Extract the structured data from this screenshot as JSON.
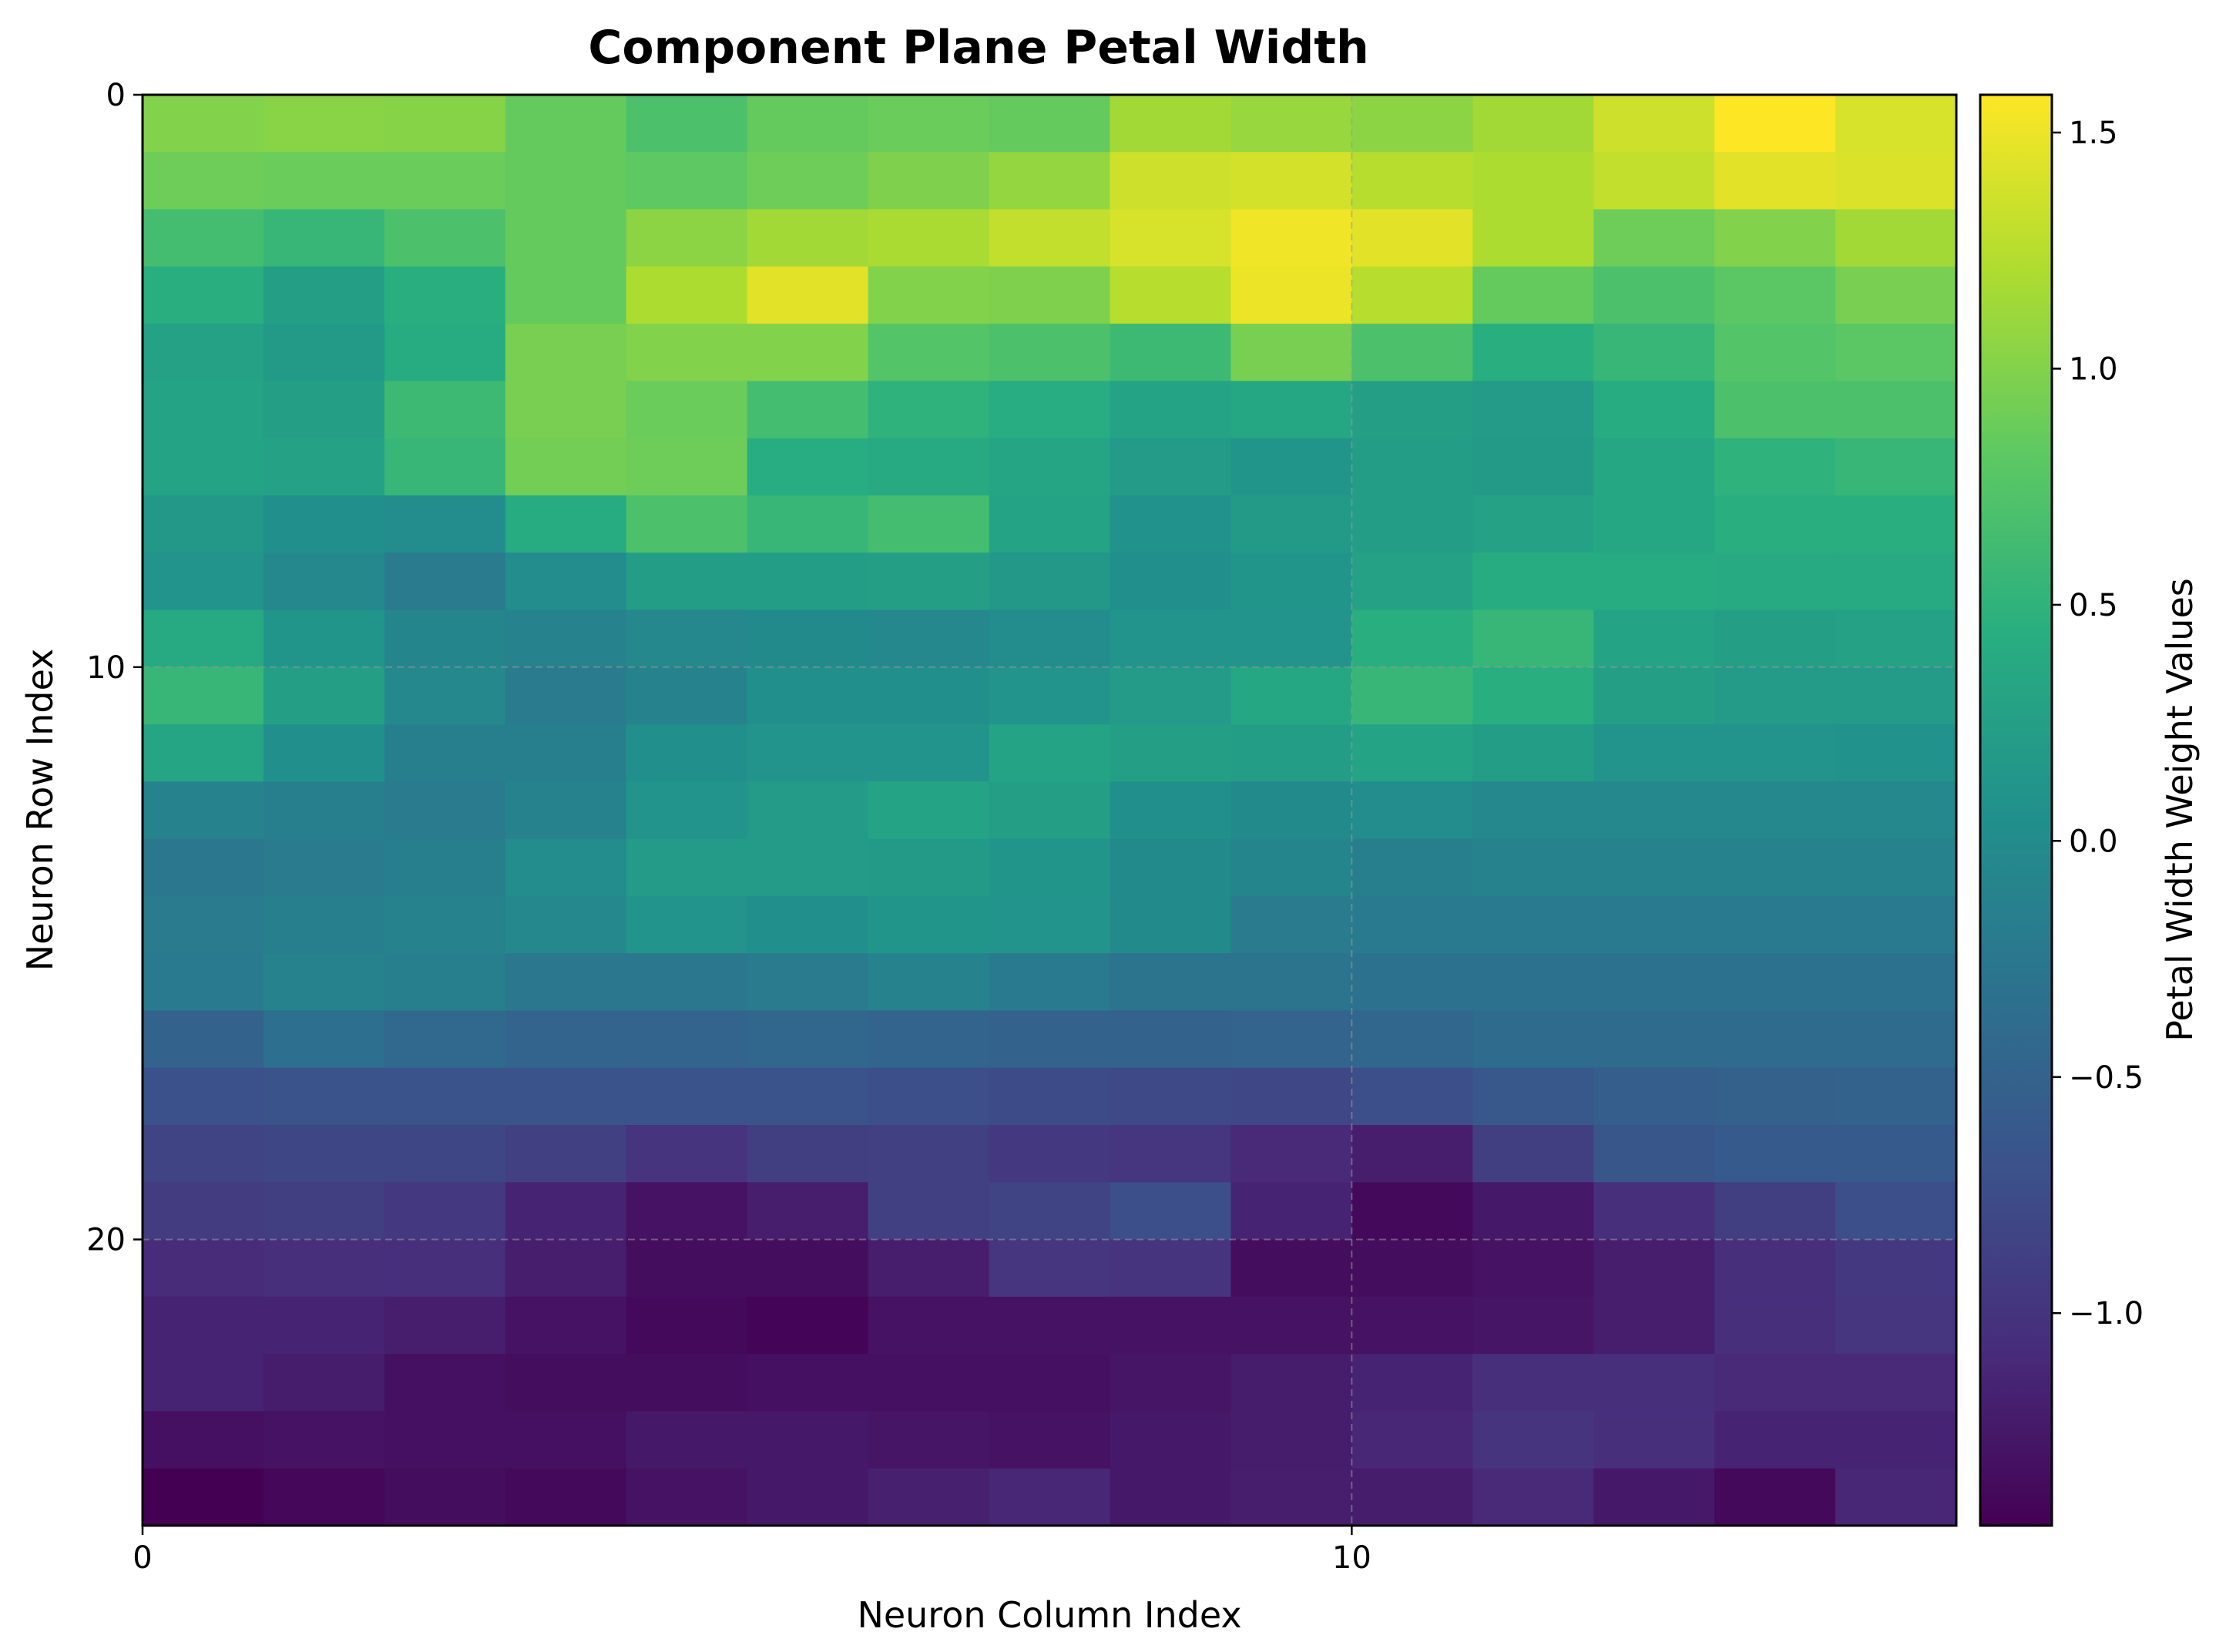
{
  "chart_data": {
    "type": "heatmap",
    "title": "Component Plane Petal Width",
    "xlabel": "Neuron Column Index",
    "ylabel": "Neuron Row Index",
    "colorbar_label": "Petal Width Weight Values",
    "colormap": "viridis",
    "x_ticks": [
      "0",
      "10"
    ],
    "y_ticks": [
      "0",
      "10",
      "20"
    ],
    "colorbar_ticks": [
      "1.5",
      "1.0",
      "0.5",
      "0.0",
      "−0.5",
      "−1.0"
    ],
    "colorbar_tick_values": [
      1.5,
      1.0,
      0.5,
      0.0,
      -0.5,
      -1.0
    ],
    "vmin": -1.45,
    "vmax": 1.58,
    "grid": true,
    "n_cols": 15,
    "n_rows": 25,
    "values": [
      [
        1.0,
        1.03,
        1.02,
        0.85,
        0.7,
        0.85,
        0.88,
        0.85,
        1.15,
        1.1,
        1.05,
        1.15,
        1.35,
        1.58,
        1.4
      ],
      [
        0.9,
        0.88,
        0.88,
        0.85,
        0.82,
        0.9,
        0.98,
        1.08,
        1.35,
        1.38,
        1.25,
        1.2,
        1.3,
        1.45,
        1.42
      ],
      [
        0.65,
        0.55,
        0.7,
        0.85,
        1.05,
        1.15,
        1.18,
        1.3,
        1.4,
        1.52,
        1.45,
        1.2,
        0.9,
        1.0,
        1.15
      ],
      [
        0.45,
        0.25,
        0.45,
        0.85,
        1.2,
        1.45,
        1.0,
        0.98,
        1.25,
        1.5,
        1.25,
        0.85,
        0.7,
        0.8,
        0.95
      ],
      [
        0.28,
        0.18,
        0.4,
        0.95,
        1.0,
        1.0,
        0.75,
        0.7,
        0.6,
        0.95,
        0.7,
        0.45,
        0.55,
        0.75,
        0.8
      ],
      [
        0.3,
        0.25,
        0.6,
        0.95,
        0.88,
        0.65,
        0.5,
        0.42,
        0.3,
        0.35,
        0.25,
        0.2,
        0.4,
        0.7,
        0.7
      ],
      [
        0.3,
        0.28,
        0.55,
        0.92,
        0.9,
        0.42,
        0.38,
        0.32,
        0.2,
        0.12,
        0.22,
        0.18,
        0.35,
        0.5,
        0.55
      ],
      [
        0.15,
        0.05,
        0.02,
        0.4,
        0.7,
        0.55,
        0.65,
        0.3,
        0.08,
        0.18,
        0.22,
        0.28,
        0.35,
        0.45,
        0.45
      ],
      [
        0.1,
        -0.05,
        -0.2,
        0.0,
        0.22,
        0.22,
        0.25,
        0.15,
        0.05,
        0.12,
        0.28,
        0.4,
        0.4,
        0.38,
        0.38
      ],
      [
        0.38,
        0.12,
        -0.08,
        -0.1,
        -0.05,
        -0.02,
        -0.05,
        0.0,
        0.1,
        0.1,
        0.45,
        0.55,
        0.3,
        0.25,
        0.28
      ],
      [
        0.55,
        0.25,
        -0.05,
        -0.2,
        -0.1,
        0.05,
        0.05,
        0.1,
        0.2,
        0.35,
        0.55,
        0.45,
        0.25,
        0.2,
        0.2
      ],
      [
        0.32,
        0.05,
        -0.15,
        -0.15,
        0.05,
        0.1,
        0.1,
        0.3,
        0.25,
        0.22,
        0.3,
        0.22,
        0.1,
        0.1,
        0.08
      ],
      [
        -0.1,
        -0.15,
        -0.2,
        -0.12,
        0.1,
        0.2,
        0.3,
        0.25,
        0.05,
        -0.02,
        0.0,
        -0.05,
        -0.05,
        -0.05,
        -0.05
      ],
      [
        -0.25,
        -0.2,
        -0.15,
        0.0,
        0.2,
        0.2,
        0.18,
        0.12,
        -0.02,
        -0.08,
        -0.15,
        -0.12,
        -0.12,
        -0.12,
        -0.12
      ],
      [
        -0.2,
        -0.15,
        -0.12,
        -0.05,
        0.1,
        0.05,
        0.12,
        0.1,
        -0.02,
        -0.2,
        -0.22,
        -0.22,
        -0.22,
        -0.22,
        -0.22
      ],
      [
        -0.22,
        -0.12,
        -0.15,
        -0.25,
        -0.25,
        -0.2,
        -0.12,
        -0.22,
        -0.3,
        -0.3,
        -0.32,
        -0.32,
        -0.32,
        -0.32,
        -0.32
      ],
      [
        -0.5,
        -0.35,
        -0.42,
        -0.48,
        -0.48,
        -0.45,
        -0.48,
        -0.5,
        -0.5,
        -0.48,
        -0.45,
        -0.4,
        -0.4,
        -0.4,
        -0.4
      ],
      [
        -0.7,
        -0.68,
        -0.68,
        -0.68,
        -0.68,
        -0.68,
        -0.72,
        -0.75,
        -0.78,
        -0.8,
        -0.72,
        -0.62,
        -0.55,
        -0.52,
        -0.5
      ],
      [
        -0.85,
        -0.82,
        -0.82,
        -0.88,
        -1.0,
        -0.9,
        -0.88,
        -0.95,
        -0.98,
        -1.1,
        -1.2,
        -0.9,
        -0.65,
        -0.6,
        -0.6
      ],
      [
        -0.92,
        -0.9,
        -0.95,
        -1.15,
        -1.3,
        -1.2,
        -0.88,
        -0.85,
        -0.72,
        -1.15,
        -1.38,
        -1.25,
        -1.05,
        -0.9,
        -0.72
      ],
      [
        -1.08,
        -1.05,
        -1.05,
        -1.2,
        -1.35,
        -1.35,
        -1.2,
        -0.98,
        -1.0,
        -1.35,
        -1.35,
        -1.3,
        -1.2,
        -1.05,
        -0.95
      ],
      [
        -1.15,
        -1.15,
        -1.2,
        -1.3,
        -1.38,
        -1.42,
        -1.3,
        -1.3,
        -1.3,
        -1.3,
        -1.3,
        -1.28,
        -1.2,
        -1.05,
        -0.98
      ],
      [
        -1.15,
        -1.22,
        -1.32,
        -1.35,
        -1.35,
        -1.32,
        -1.32,
        -1.32,
        -1.28,
        -1.22,
        -1.15,
        -1.05,
        -1.05,
        -1.1,
        -1.1
      ],
      [
        -1.32,
        -1.3,
        -1.32,
        -1.32,
        -1.25,
        -1.25,
        -1.28,
        -1.3,
        -1.25,
        -1.22,
        -1.12,
        -1.0,
        -1.05,
        -1.15,
        -1.15
      ],
      [
        -1.45,
        -1.4,
        -1.35,
        -1.38,
        -1.3,
        -1.25,
        -1.18,
        -1.12,
        -1.25,
        -1.2,
        -1.22,
        -1.1,
        -1.25,
        -1.38,
        -1.12
      ]
    ]
  }
}
